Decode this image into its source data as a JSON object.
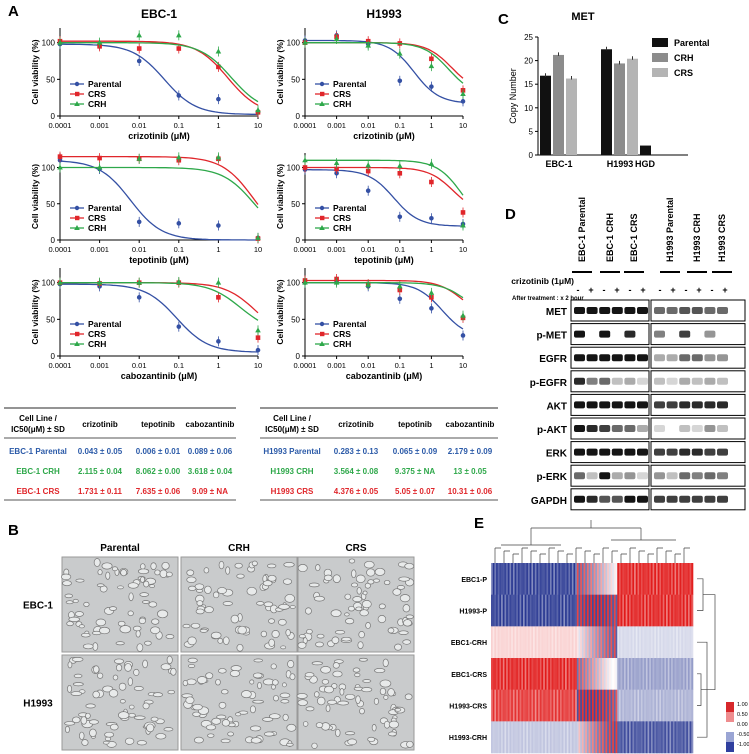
{
  "panel_letters": {
    "A": "A",
    "B": "B",
    "C": "C",
    "D": "D",
    "E": "E"
  },
  "panelA": {
    "ylabel": "Cell viability (%)",
    "legend": [
      "Parental",
      "CRS",
      "CRH"
    ],
    "xticks": [
      "0.0001",
      "0.001",
      "0.01",
      "0.1",
      "1",
      "10"
    ],
    "yticks": [
      "0",
      "50",
      "100"
    ],
    "colors": {
      "Parental": "#3450a4",
      "CRS": "#e0262b",
      "CRH": "#2ea84a"
    }
  },
  "chart_data": [
    {
      "type": "scatter",
      "title": "EBC-1",
      "xlabel": "crizotinib (μM)",
      "ylabel": "Cell viability (%)",
      "xscale": "log",
      "xlim": [
        0.0001,
        10
      ],
      "ylim": [
        0,
        120
      ],
      "legend": "bottom-left",
      "x": [
        0.0001,
        0.001,
        0.01,
        0.1,
        1,
        10
      ],
      "series": [
        {
          "name": "Parental",
          "values": [
            98,
            97,
            75,
            28,
            23,
            5
          ],
          "ic50": 0.043
        },
        {
          "name": "CRS",
          "values": [
            102,
            95,
            92,
            92,
            67,
            5
          ],
          "ic50": 1.731
        },
        {
          "name": "CRH",
          "values": [
            100,
            100,
            110,
            110,
            88,
            8
          ],
          "ic50": 2.115
        }
      ]
    },
    {
      "type": "scatter",
      "title": "H1993",
      "xlabel": "crizotinib (μM)",
      "ylabel": "Cell viability (%)",
      "xscale": "log",
      "xlim": [
        0.0001,
        10
      ],
      "ylim": [
        0,
        120
      ],
      "legend": "bottom-left",
      "x": [
        0.0001,
        0.001,
        0.01,
        0.1,
        1,
        10
      ],
      "series": [
        {
          "name": "Parental",
          "values": [
            103,
            110,
            98,
            48,
            40,
            20
          ],
          "ic50": 0.283
        },
        {
          "name": "CRS",
          "values": [
            100,
            108,
            102,
            99,
            78,
            35
          ],
          "ic50": 4.376
        },
        {
          "name": "CRH",
          "values": [
            100,
            105,
            96,
            85,
            68,
            30
          ],
          "ic50": 3.564
        }
      ]
    },
    {
      "type": "scatter",
      "title": "",
      "xlabel": "tepotinib (μM)",
      "ylabel": "Cell viability (%)",
      "xscale": "log",
      "xlim": [
        0.0001,
        10
      ],
      "ylim": [
        0,
        120
      ],
      "legend": "bottom-left",
      "x": [
        0.0001,
        0.001,
        0.01,
        0.1,
        1,
        10
      ],
      "series": [
        {
          "name": "Parental",
          "values": [
            110,
            98,
            25,
            23,
            20,
            3
          ],
          "ic50": 0.006
        },
        {
          "name": "CRS",
          "values": [
            115,
            113,
            112,
            110,
            112,
            2
          ],
          "ic50": 7.635
        },
        {
          "name": "CRH",
          "values": [
            100,
            100,
            112,
            114,
            114,
            3
          ],
          "ic50": 8.062
        }
      ]
    },
    {
      "type": "scatter",
      "title": "",
      "xlabel": "tepotinib (μM)",
      "ylabel": "Cell viability (%)",
      "xscale": "log",
      "xlim": [
        0.0001,
        10
      ],
      "ylim": [
        0,
        120
      ],
      "legend": "bottom-left",
      "x": [
        0.0001,
        0.001,
        0.01,
        0.1,
        1,
        10
      ],
      "series": [
        {
          "name": "Parental",
          "values": [
            97,
            92,
            68,
            32,
            30,
            22
          ],
          "ic50": 0.065
        },
        {
          "name": "CRS",
          "values": [
            100,
            98,
            95,
            92,
            80,
            38
          ],
          "ic50": 5.05
        },
        {
          "name": "CRH",
          "values": [
            110,
            106,
            103,
            102,
            105,
            20
          ],
          "ic50": 9.375
        }
      ]
    },
    {
      "type": "scatter",
      "title": "",
      "xlabel": "cabozantinib (μM)",
      "ylabel": "Cell viability (%)",
      "xscale": "log",
      "xlim": [
        0.0001,
        10
      ],
      "ylim": [
        0,
        120
      ],
      "legend": "bottom-left",
      "x": [
        0.0001,
        0.001,
        0.01,
        0.1,
        1,
        10
      ],
      "series": [
        {
          "name": "Parental",
          "values": [
            98,
            95,
            80,
            40,
            20,
            8
          ],
          "ic50": 0.089
        },
        {
          "name": "CRS",
          "values": [
            100,
            99,
            100,
            100,
            80,
            25
          ],
          "ic50": 9.09
        },
        {
          "name": "CRH",
          "values": [
            100,
            100,
            100,
            101,
            100,
            35
          ],
          "ic50": 3.618
        }
      ]
    },
    {
      "type": "scatter",
      "title": "",
      "xlabel": "cabozantinib (μM)",
      "ylabel": "Cell viability (%)",
      "xscale": "log",
      "xlim": [
        0.0001,
        10
      ],
      "ylim": [
        0,
        120
      ],
      "legend": "bottom-left",
      "x": [
        0.0001,
        0.001,
        0.01,
        0.1,
        1,
        10
      ],
      "series": [
        {
          "name": "Parental",
          "values": [
            100,
            102,
            95,
            78,
            65,
            28
          ],
          "ic50": 2.179
        },
        {
          "name": "CRS",
          "values": [
            103,
            105,
            98,
            90,
            80,
            52
          ],
          "ic50": 10.31
        },
        {
          "name": "CRH",
          "values": [
            100,
            100,
            97,
            95,
            86,
            55
          ],
          "ic50": 13
        }
      ]
    },
    {
      "type": "bar",
      "title": "MET",
      "ylabel": "Copy Number",
      "ylim": [
        0,
        25
      ],
      "legend": "top-right",
      "categories": [
        "EBC-1",
        "H1993",
        "HGD"
      ],
      "series": [
        {
          "name": "Parental",
          "values": [
            16.8,
            22.4,
            2.0
          ],
          "color": "#111111"
        },
        {
          "name": "CRH",
          "values": [
            21.2,
            19.4,
            0
          ],
          "color": "#8c8c8c"
        },
        {
          "name": "CRS",
          "values": [
            16.2,
            20.4,
            0
          ],
          "color": "#b4b4b4"
        }
      ]
    }
  ],
  "tables": {
    "header": [
      "Cell Line / IC50(μM) ± SD",
      "crizotinib",
      "tepotinib",
      "cabozantinib"
    ],
    "left": [
      {
        "line": "EBC-1 Parental",
        "c": "0.043 ± 0.05",
        "t": "0.006 ± 0.01",
        "z": "0.089 ± 0.06",
        "color": "#2b5aa8"
      },
      {
        "line": "EBC-1 CRH",
        "c": "2.115 ± 0.04",
        "t": "8.062 ± 0.00",
        "z": "3.618 ± 0.04",
        "color": "#2ea84a"
      },
      {
        "line": "EBC-1 CRS",
        "c": "1.731 ± 0.11",
        "t": "7.635 ± 0.06",
        "z": "9.09 ± NA",
        "color": "#e0262b"
      }
    ],
    "right": [
      {
        "line": "H1993 Parental",
        "c": "0.283 ± 0.13",
        "t": "0.065 ± 0.09",
        "z": "2.179 ± 0.09",
        "color": "#2b5aa8"
      },
      {
        "line": "H1993 CRH",
        "c": "3.564 ± 0.08",
        "t": "9.375 ± NA",
        "z": "13 ± 0.05",
        "color": "#2ea84a"
      },
      {
        "line": "H1993 CRS",
        "c": "4.376 ± 0.05",
        "t": "5.05 ± 0.07",
        "z": "10.31 ± 0.06",
        "color": "#e0262b"
      }
    ]
  },
  "panelB": {
    "columns": [
      "Parental",
      "CRH",
      "CRS"
    ],
    "rows": [
      "EBC-1",
      "H1993"
    ]
  },
  "panelD": {
    "lanes": [
      "EBC-1 Parental",
      "EBC-1 CRH",
      "EBC-1 CRS",
      "H1993 Parental",
      "H1993 CRH",
      "H1993 CRS"
    ],
    "treatment_label": "crizotinib (1μM)",
    "after_label": "After treatment : x 2 hour",
    "minus": "-",
    "plus": "+",
    "proteins": [
      "MET",
      "p-MET",
      "EGFR",
      "p-EGFR",
      "AKT",
      "p-AKT",
      "ERK",
      "p-ERK",
      "GAPDH"
    ]
  },
  "panelE": {
    "rows": [
      "EBC1-P",
      "H1993-P",
      "EBC1-CRH",
      "EBC1-CRS",
      "H1993-CRS",
      "H1993-CRH"
    ],
    "scale": [
      "1.00",
      "0.50",
      "0.00",
      "-0.50",
      "-1.00"
    ]
  }
}
